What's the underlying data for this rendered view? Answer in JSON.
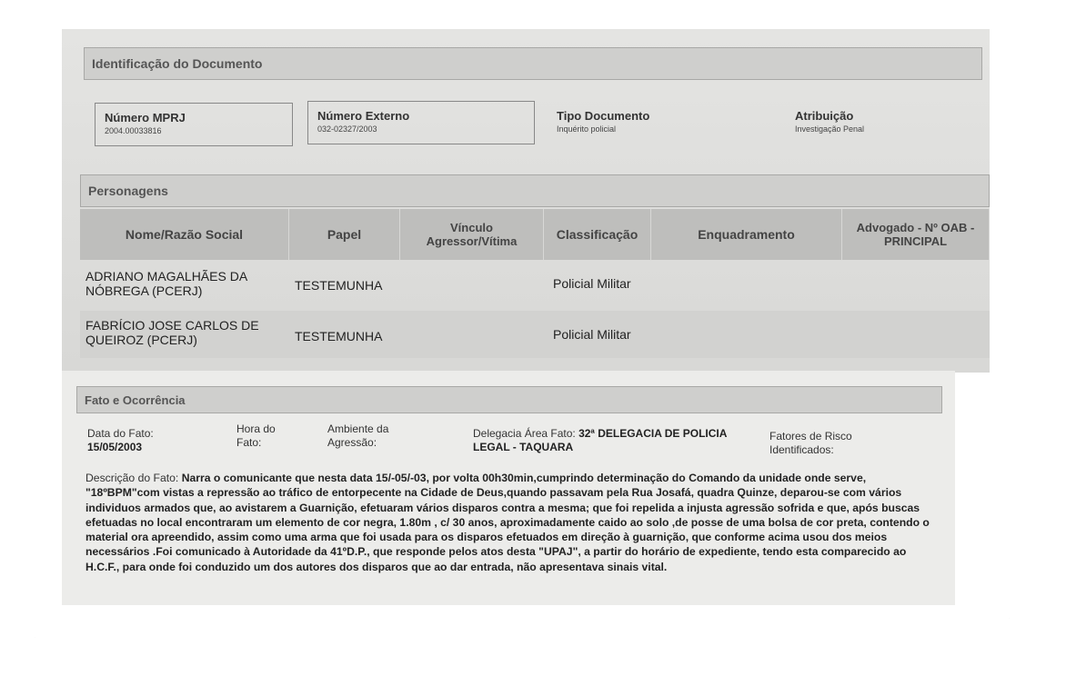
{
  "identificacao": {
    "title": "Identificação do Documento",
    "fields": [
      {
        "label": "Número MPRJ",
        "value": "2004.00033816"
      },
      {
        "label": "Número Externo",
        "value": "032-02327/2003"
      },
      {
        "label": "Tipo Documento",
        "value": "Inquérito policial"
      },
      {
        "label": "Atribuição",
        "value": "Investigação Penal"
      }
    ]
  },
  "personagens": {
    "title": "Personagens",
    "headers": [
      "Nome/Razão Social",
      "Papel",
      "Vínculo Agressor/Vítima",
      "Classificação",
      "Enquadramento",
      "Advogado - Nº OAB - PRINCIPAL"
    ],
    "rows": [
      {
        "nome": "ADRIANO MAGALHÃES DA NÓBREGA (PCERJ)",
        "papel": "TESTEMUNHA",
        "classificacao": "Policial Militar"
      },
      {
        "nome": "FABRÍCIO JOSE CARLOS DE QUEIROZ (PCERJ)",
        "papel": "TESTEMUNHA",
        "classificacao": "Policial Militar"
      }
    ]
  },
  "fato": {
    "title": "Fato e Ocorrência",
    "data_label": "Data do Fato:",
    "data_value": "15/05/2003",
    "hora_label": "Hora do Fato:",
    "ambiente_label": "Ambiente da Agressão:",
    "delegacia_label": "Delegacia Área Fato:",
    "delegacia_value": "32ª DELEGACIA DE POLICIA LEGAL - TAQUARA",
    "fatores_label": "Fatores de Risco Identificados:",
    "descricao_label": "Descrição do Fato:",
    "descricao_value": "Narra o comunicante que nesta data 15/-05/-03, por volta 00h30min,cumprindo determinação do Comando da unidade onde serve, \"18ºBPM\"com vistas a repressão ao tráfico de entorpecente na Cidade de Deus,quando passavam pela Rua Josafá, quadra Quinze, deparou-se com vários individuos armados que, ao avistarem a Guarnição, efetuaram vários disparos contra a mesma; que foi repelida a injusta agressão sofrida e que, após buscas efetuadas no local encontraram um elemento de cor negra, 1.80m , c/ 30 anos, aproximadamente caido ao solo ,de posse de uma bolsa de cor preta, contendo o material ora apreendido, assim como uma arma que foi usada para os disparos efetuados em direção à guarnição, que conforme acima usou dos meios necessários .Foi comunicado à Autoridade da 41ºD.P., que responde pelos atos desta \"UPAJ\", a partir do horário de expediente, tendo esta comparecido ao H.C.F., para onde foi conduzido um dos autores dos disparos que ao dar entrada, não apresentava sinais vital."
  }
}
